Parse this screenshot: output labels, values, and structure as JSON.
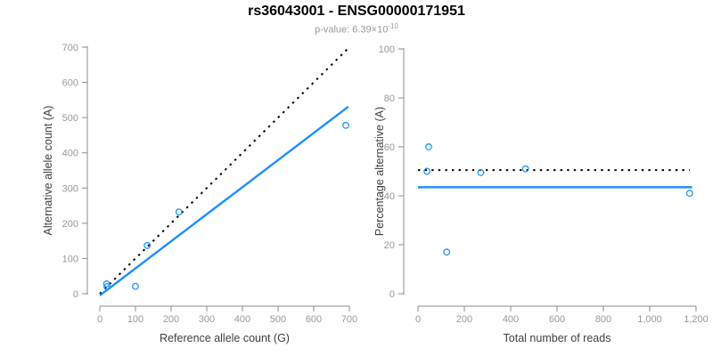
{
  "header": {
    "title": "rs36043001 - ENSG00000171951",
    "pvalue_prefix": "p-value: 6.39×10",
    "pvalue_exponent": "-10"
  },
  "colors": {
    "point_blue": "#2496F2",
    "line_blue": "#1E90FF",
    "dotted_black": "#000000",
    "axis_gray": "#8C8C8C",
    "tick_label_gray": "#999999",
    "axis_title_dark": "#404040",
    "subtitle_gray": "#999999"
  },
  "chart_data": [
    {
      "type": "scatter",
      "name": "allele-counts-panel",
      "xlabel": "Reference allele count (G)",
      "ylabel": "Alternative allele count (A)",
      "xlim": [
        0,
        700
      ],
      "ylim": [
        0,
        700
      ],
      "xticks": [
        0,
        100,
        200,
        300,
        400,
        500,
        600,
        700
      ],
      "xtick_labels": [
        "0",
        "100",
        "200",
        "300",
        "400",
        "500",
        "600",
        "700"
      ],
      "yticks": [
        0,
        100,
        200,
        300,
        400,
        500,
        600,
        700
      ],
      "ytick_labels": [
        "0",
        "100",
        "200",
        "300",
        "400",
        "500",
        "600",
        "700"
      ],
      "grid": false,
      "legend": false,
      "points": [
        [
          19,
          28
        ],
        [
          20,
          20
        ],
        [
          100,
          21
        ],
        [
          133,
          137
        ],
        [
          222,
          232
        ],
        [
          690,
          478
        ]
      ],
      "lines": [
        {
          "name": "identity-line",
          "style": "dotted",
          "color_key": "dotted_black",
          "x": [
            0,
            694
          ],
          "y": [
            0,
            694
          ]
        },
        {
          "name": "regression-line",
          "style": "solid",
          "color_key": "line_blue",
          "x": [
            0,
            697
          ],
          "y": [
            -5,
            531
          ]
        }
      ]
    },
    {
      "type": "scatter",
      "name": "percentage-panel",
      "xlabel": "Total number of reads",
      "ylabel": "Percentage alternative (A)",
      "xlim": [
        0,
        1200
      ],
      "ylim": [
        0,
        100
      ],
      "xticks": [
        0,
        200,
        400,
        600,
        800,
        1000,
        1200
      ],
      "xtick_labels": [
        "0",
        "200",
        "400",
        "600",
        "800",
        "1,000",
        "1,200"
      ],
      "yticks": [
        0,
        20,
        40,
        60,
        80,
        100
      ],
      "ytick_labels": [
        "0",
        "20",
        "40",
        "60",
        "80",
        "100"
      ],
      "grid": false,
      "legend": false,
      "points": [
        [
          46,
          60
        ],
        [
          39,
          50
        ],
        [
          124,
          17
        ],
        [
          271,
          49.5
        ],
        [
          464,
          51
        ],
        [
          1172,
          41
        ]
      ],
      "lines": [
        {
          "name": "expected-50pct-line",
          "style": "dotted",
          "color_key": "dotted_black",
          "x": [
            0,
            1172
          ],
          "y": [
            50.5,
            50.5
          ]
        },
        {
          "name": "mean-percentage-line",
          "style": "solid",
          "color_key": "line_blue",
          "x": [
            0,
            1183
          ],
          "y": [
            43.5,
            43.5
          ]
        }
      ]
    }
  ]
}
